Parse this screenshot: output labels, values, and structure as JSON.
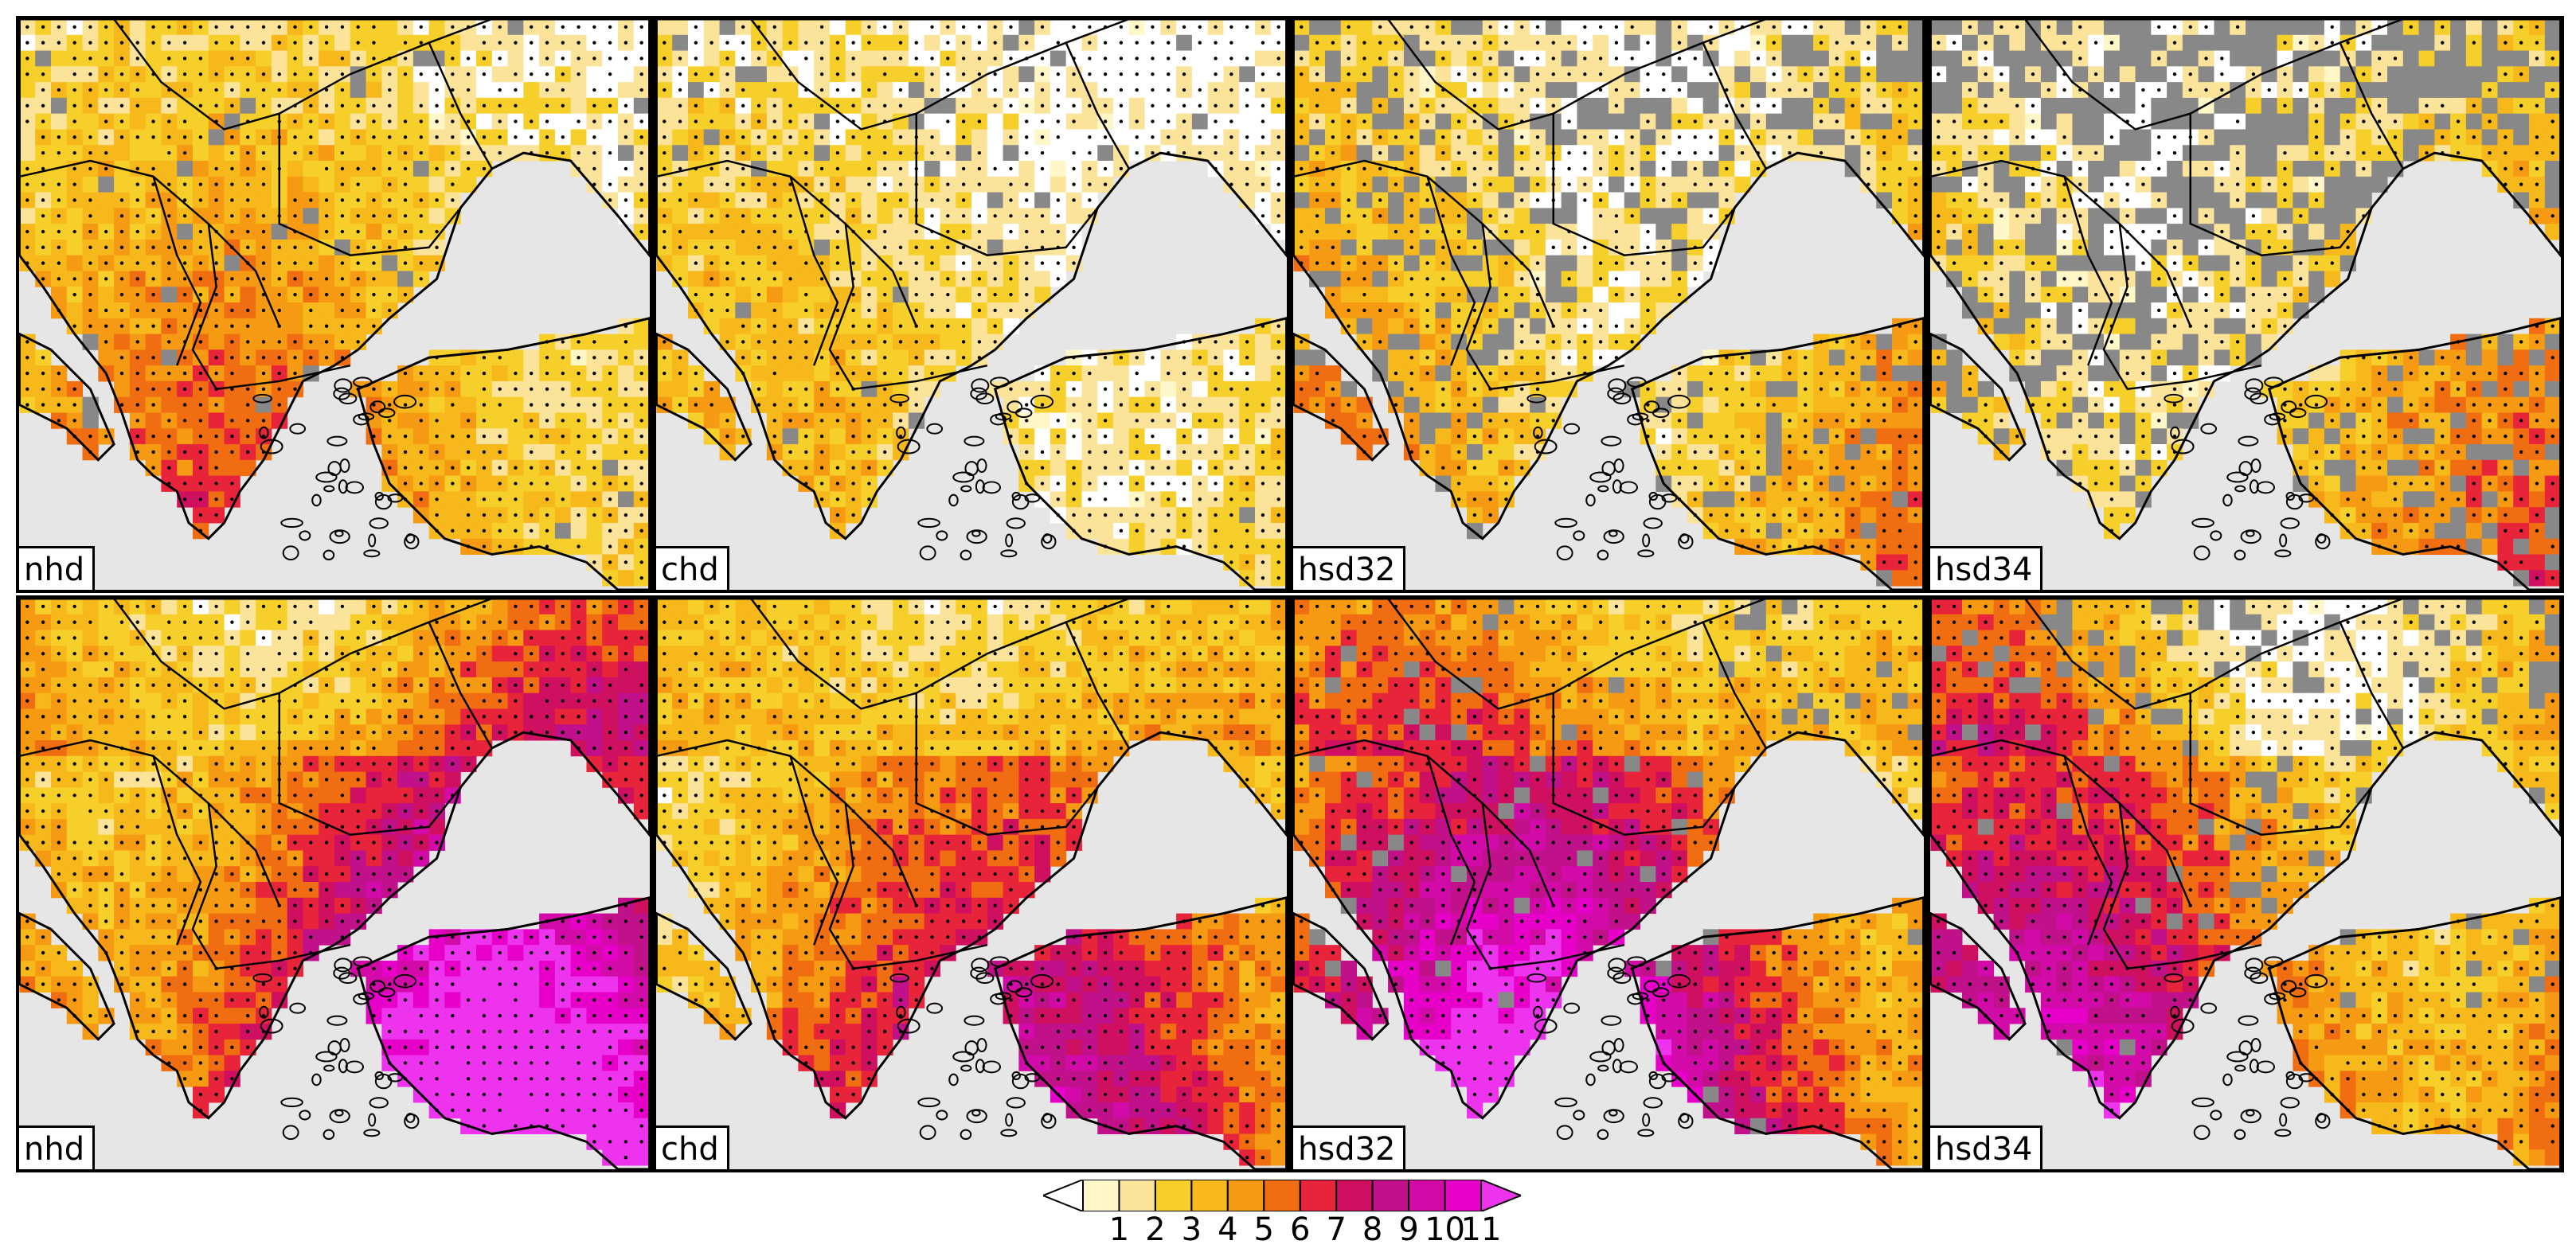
{
  "panels": [
    {
      "label": "nhd",
      "row": 0,
      "col": 0,
      "intensity": 0.45,
      "gray": 0.05
    },
    {
      "label": "chd",
      "row": 0,
      "col": 1,
      "intensity": 0.3,
      "gray": 0.05
    },
    {
      "label": "hsd32",
      "row": 0,
      "col": 2,
      "intensity": 0.45,
      "gray": 0.3
    },
    {
      "label": "hsd34",
      "row": 0,
      "col": 3,
      "intensity": 0.4,
      "gray": 0.55
    },
    {
      "label": "nhd",
      "row": 1,
      "col": 0,
      "intensity": 0.95,
      "gray": 0.0
    },
    {
      "label": "chd",
      "row": 1,
      "col": 1,
      "intensity": 0.65,
      "gray": 0.0
    },
    {
      "label": "hsd32",
      "row": 1,
      "col": 2,
      "intensity": 0.9,
      "gray": 0.08
    },
    {
      "label": "hsd34",
      "row": 1,
      "col": 3,
      "intensity": 0.75,
      "gray": 0.15
    }
  ],
  "colorbar": {
    "ticks": [
      "1",
      "2",
      "3",
      "4",
      "5",
      "6",
      "7",
      "8",
      "9",
      "10",
      "11"
    ],
    "colors": [
      "#fff7c8",
      "#fbe39a",
      "#f7cf2a",
      "#f6b81a",
      "#f59a12",
      "#f06d12",
      "#e8243a",
      "#cf1060",
      "#c0108a",
      "#d20aa8",
      "#e600c8",
      "#ee33ee"
    ],
    "under_color": "#ffffff",
    "over_color": "#ee33ee"
  },
  "colors": {
    "sea": "#e6e6e6",
    "missing": "#888888",
    "border": "#000000"
  }
}
